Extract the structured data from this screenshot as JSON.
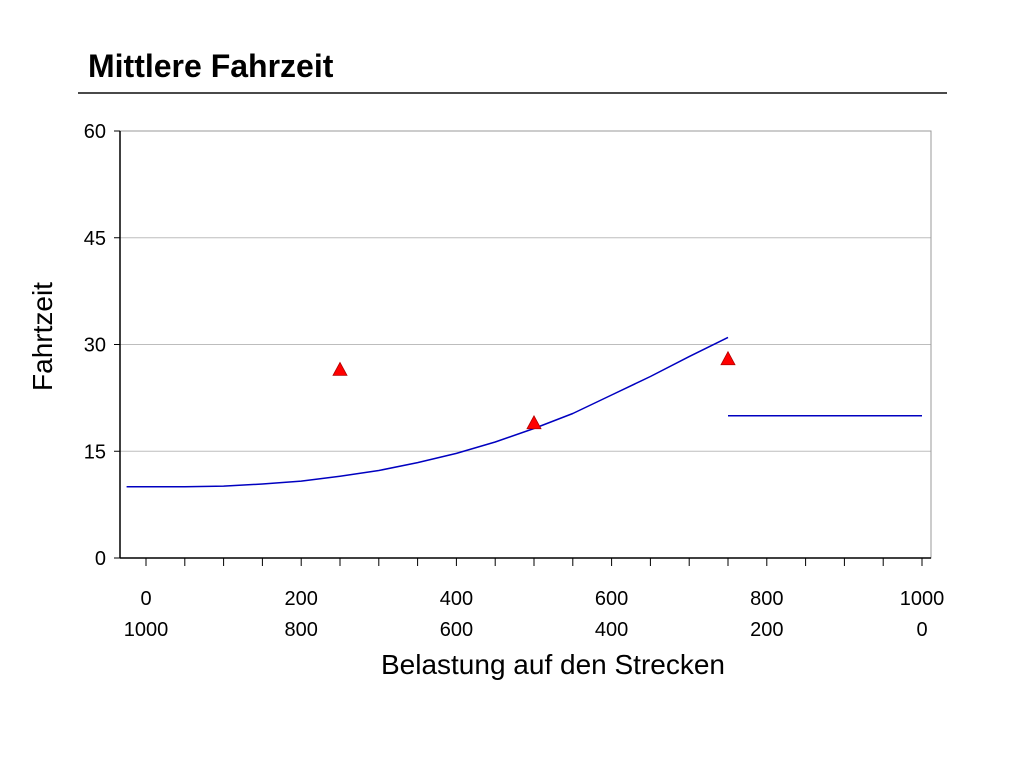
{
  "slide": {
    "title": "Mittlere Fahrzeit"
  },
  "chart_data": {
    "type": "line",
    "title": "",
    "xlabel": "Belastung auf den Strecken",
    "ylabel": "Fahrtzeit",
    "xlim": [
      0,
      1000
    ],
    "ylim": [
      0,
      60
    ],
    "yticks": [
      0,
      15,
      30,
      45,
      60
    ],
    "xticks": [
      0,
      200,
      400,
      600,
      800,
      1000
    ],
    "xticks_secondary": [
      1000,
      800,
      600,
      400,
      200,
      0
    ],
    "grid": true,
    "legend": "none",
    "colors": {
      "line": "#0000c0",
      "marker": "#ff0000",
      "grid": "#bdbdbd",
      "axis": "#000000"
    },
    "series": [
      {
        "type": "line",
        "x": [
          -25,
          0,
          50,
          100,
          150,
          200,
          250,
          300,
          350,
          400,
          450,
          500,
          550,
          600,
          650,
          700,
          750
        ],
        "y": [
          10.0,
          10.0,
          10.0,
          10.1,
          10.4,
          10.8,
          11.5,
          12.3,
          13.4,
          14.7,
          16.3,
          18.2,
          20.3,
          22.9,
          25.5,
          28.3,
          31.0
        ]
      },
      {
        "type": "line",
        "x": [
          750,
          1000
        ],
        "y": [
          20.0,
          20.0
        ]
      },
      {
        "type": "scatter",
        "marker": "triangle",
        "x": [
          250,
          500,
          750
        ],
        "y": [
          26.5,
          19.0,
          28.0
        ]
      }
    ]
  }
}
